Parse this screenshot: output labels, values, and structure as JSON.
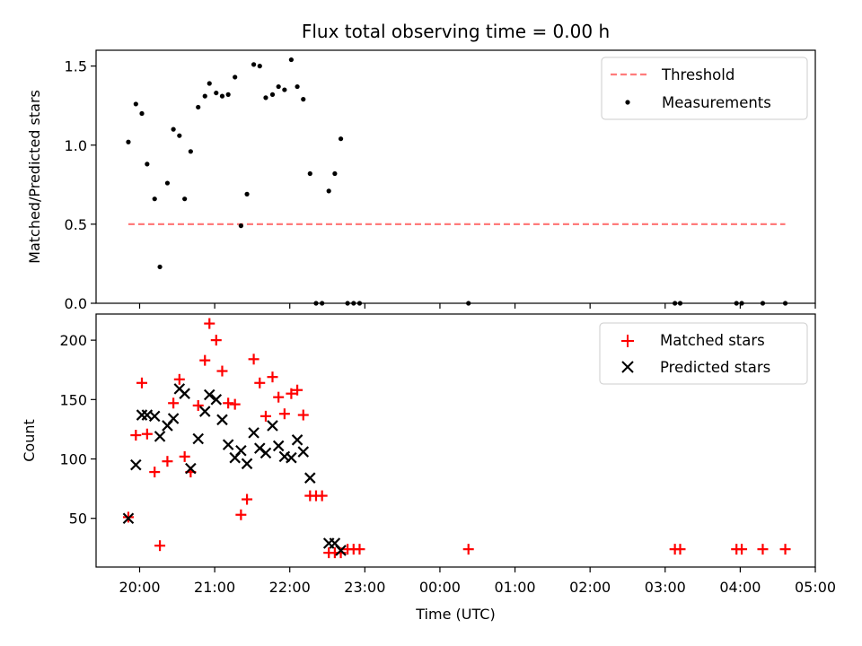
{
  "chart_data": [
    {
      "type": "scatter",
      "title": "Flux total observing time = 0.00 h",
      "ylabel": "Matched/Predicted stars",
      "xlabel": "",
      "ylim": [
        0,
        1.6
      ],
      "yticks": [
        0.0,
        0.5,
        1.0,
        1.5
      ],
      "ytick_labels": [
        "0.0",
        "0.5",
        "1.0",
        "1.5"
      ],
      "legend_position": "top-right",
      "series": [
        {
          "name": "Threshold",
          "kind": "line",
          "style": "dashed",
          "color": "#ff7b7b",
          "x": [
            19.85,
            28.6
          ],
          "y": [
            0.5,
            0.5
          ]
        },
        {
          "name": "Measurements",
          "kind": "scatter",
          "marker": "dot",
          "color": "#000000",
          "x": [
            19.85,
            19.95,
            20.03,
            20.1,
            20.2,
            20.27,
            20.37,
            20.45,
            20.53,
            20.6,
            20.68,
            20.78,
            20.87,
            20.93,
            21.02,
            21.1,
            21.18,
            21.27,
            21.35,
            21.43,
            21.52,
            21.6,
            21.68,
            21.77,
            21.85,
            21.93,
            22.02,
            22.1,
            22.18,
            22.27,
            22.35,
            22.43,
            22.52,
            22.6,
            22.68,
            22.77,
            22.85,
            22.93,
            24.38,
            27.13,
            27.2,
            27.95,
            28.02,
            28.3,
            28.6
          ],
          "y": [
            1.02,
            1.26,
            1.2,
            0.88,
            0.66,
            0.23,
            0.76,
            1.1,
            1.06,
            0.66,
            0.96,
            1.24,
            1.31,
            1.39,
            1.33,
            1.31,
            1.32,
            1.43,
            0.49,
            0.69,
            1.51,
            1.5,
            1.3,
            1.32,
            1.37,
            1.35,
            1.54,
            1.37,
            1.29,
            0.82,
            0.0,
            0.0,
            0.71,
            0.82,
            1.04,
            0.0,
            0.0,
            0.0,
            0.0,
            0.0,
            0.0,
            0.0,
            0.0,
            0.0,
            0.0
          ]
        }
      ]
    },
    {
      "type": "scatter",
      "title": "",
      "ylabel": "Count",
      "xlabel": "Time (UTC)",
      "ylim": [
        9,
        222
      ],
      "yticks": [
        50,
        100,
        150,
        200
      ],
      "ytick_labels": [
        "50",
        "100",
        "150",
        "200"
      ],
      "x_unit": "hours UTC (values above 24 are after midnight)",
      "xticks": [
        20,
        21,
        22,
        23,
        24,
        25,
        26,
        27,
        28,
        29
      ],
      "xtick_labels": [
        "20:00",
        "21:00",
        "22:00",
        "23:00",
        "00:00",
        "01:00",
        "02:00",
        "03:00",
        "04:00",
        "05:00"
      ],
      "legend_position": "top-right",
      "series": [
        {
          "name": "Matched stars",
          "kind": "scatter",
          "marker": "plus",
          "color": "#ff0000",
          "x": [
            19.85,
            19.95,
            20.03,
            20.1,
            20.2,
            20.27,
            20.37,
            20.45,
            20.53,
            20.6,
            20.68,
            20.78,
            20.87,
            20.93,
            21.02,
            21.1,
            21.18,
            21.27,
            21.35,
            21.43,
            21.52,
            21.6,
            21.68,
            21.77,
            21.85,
            21.93,
            22.02,
            22.1,
            22.18,
            22.27,
            22.35,
            22.43,
            22.52,
            22.6,
            22.68,
            22.77,
            22.85,
            22.93,
            24.38,
            27.13,
            27.2,
            27.95,
            28.02,
            28.3,
            28.6
          ],
          "y": [
            51,
            120,
            164,
            121,
            89,
            27,
            98,
            147,
            167,
            102,
            89,
            145,
            183,
            214,
            200,
            174,
            147,
            146,
            53,
            66,
            184,
            164,
            136,
            169,
            152,
            138,
            155,
            158,
            137,
            69,
            69,
            69,
            21,
            21,
            21,
            24,
            24,
            24,
            24,
            24,
            24,
            24,
            24,
            24,
            24
          ]
        },
        {
          "name": "Predicted stars",
          "kind": "scatter",
          "marker": "cross",
          "color": "#000000",
          "x": [
            19.85,
            19.95,
            20.03,
            20.1,
            20.2,
            20.27,
            20.37,
            20.45,
            20.53,
            20.6,
            20.68,
            20.78,
            20.87,
            20.93,
            21.02,
            21.1,
            21.18,
            21.27,
            21.35,
            21.43,
            21.52,
            21.6,
            21.68,
            21.77,
            21.85,
            21.93,
            22.02,
            22.1,
            22.18,
            22.27,
            22.52,
            22.6,
            22.68
          ],
          "y": [
            50,
            95,
            137,
            137,
            136,
            119,
            128,
            134,
            159,
            155,
            92,
            117,
            140,
            154,
            150,
            133,
            112,
            101,
            107,
            96,
            122,
            109,
            105,
            128,
            111,
            102,
            101,
            116,
            106,
            84,
            29,
            29,
            23
          ]
        }
      ]
    }
  ]
}
